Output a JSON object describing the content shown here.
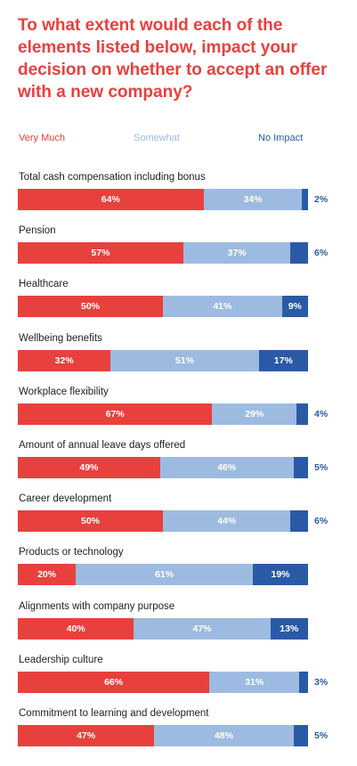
{
  "chart_data": {
    "type": "bar",
    "orientation": "horizontal",
    "stacked": true,
    "title": "To what extent would each of the elements listed below, impact your decision on whether to accept an offer with a new company?",
    "legend_placement": "top",
    "colors": {
      "very_much": "#e8403d",
      "somewhat": "#9dbbe0",
      "no_impact": "#2a5aa6"
    },
    "series": [
      {
        "name": "Very Much",
        "values": [
          64,
          57,
          50,
          32,
          67,
          49,
          50,
          20,
          40,
          66,
          47
        ]
      },
      {
        "name": "Somewhat",
        "values": [
          34,
          37,
          41,
          51,
          29,
          46,
          44,
          61,
          47,
          31,
          48
        ]
      },
      {
        "name": "No Impact",
        "values": [
          2,
          6,
          9,
          17,
          4,
          5,
          6,
          19,
          13,
          3,
          5
        ]
      }
    ],
    "categories": [
      "Total cash compensation including bonus",
      "Pension",
      "Healthcare",
      "Wellbeing benefits",
      "Workplace flexibility",
      "Amount of annual leave days offered",
      "Career development",
      "Products or technology",
      "Alignments with company purpose",
      "Leadership culture",
      "Commitment to learning and development"
    ],
    "outside_labels": [
      true,
      true,
      false,
      false,
      true,
      true,
      true,
      false,
      false,
      true,
      true
    ]
  }
}
